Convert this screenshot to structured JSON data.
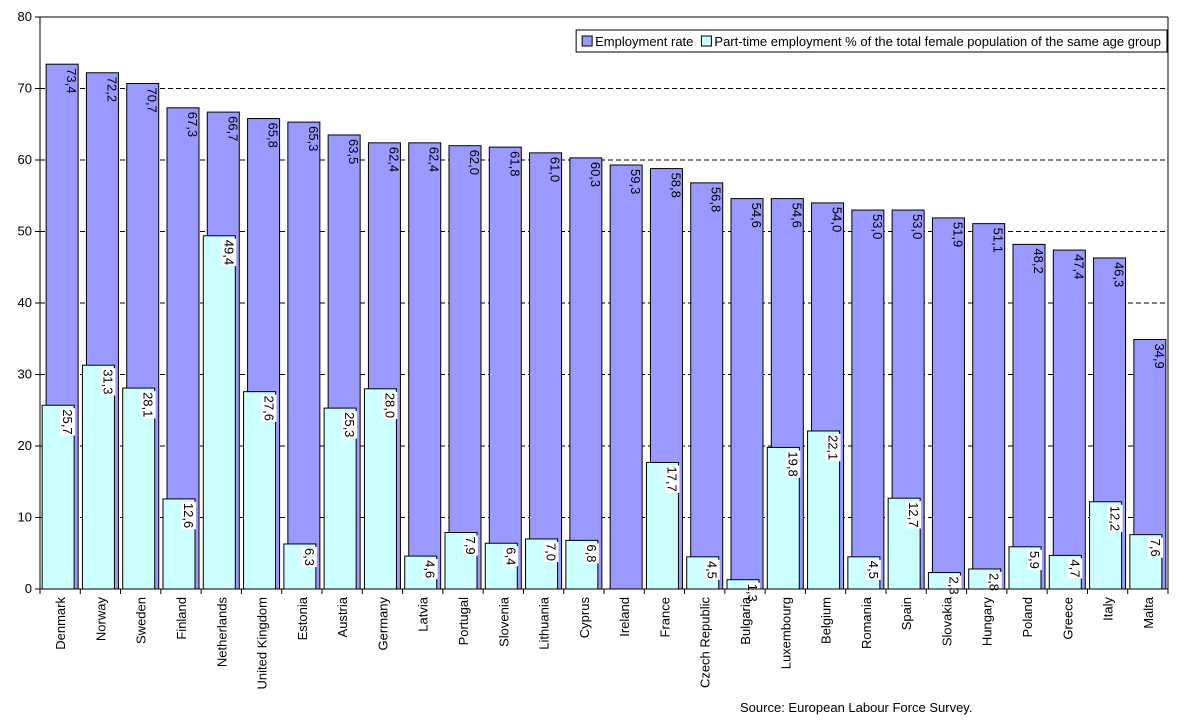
{
  "chart_data": {
    "type": "bar",
    "title": "",
    "xlabel": "",
    "ylabel": "",
    "ylim": [
      0,
      80
    ],
    "yticks": [
      0,
      10,
      20,
      30,
      40,
      50,
      60,
      70,
      80
    ],
    "grid": "horizontal dashed",
    "legend_position": "top-right",
    "categories": [
      "Denmark",
      "Norway",
      "Sweden",
      "Finland",
      "Netherlands",
      "United Kingdom",
      "Estonia",
      "Austria",
      "Germany",
      "Latvia",
      "Portugal",
      "Slovenia",
      "Lithuania",
      "Cyprus",
      "Ireland",
      "France",
      "Czech Republic",
      "Bulgaria",
      "Luxembourg",
      "Belgium",
      "Romania",
      "Spain",
      "Slovakia",
      "Hungary",
      "Poland",
      "Greece",
      "Italy",
      "Malta"
    ],
    "series": [
      {
        "name": "Employment rate",
        "color": "#9999ff",
        "values": [
          73.4,
          72.2,
          70.7,
          67.3,
          66.7,
          65.8,
          65.3,
          63.5,
          62.4,
          62.4,
          62.0,
          61.8,
          61.0,
          60.3,
          59.3,
          58.8,
          56.8,
          54.6,
          54.6,
          54.0,
          53.0,
          53.0,
          51.9,
          51.1,
          48.2,
          47.4,
          46.3,
          34.9
        ],
        "labels": [
          "73,4",
          "72,2",
          "70,7",
          "67,3",
          "66,7",
          "65,8",
          "65,3",
          "63,5",
          "62,4",
          "62,4",
          "62,0",
          "61,8",
          "61,0",
          "60,3",
          "59,3",
          "58,8",
          "56,8",
          "54,6",
          "54,6",
          "54,0",
          "53,0",
          "53,0",
          "51,9",
          "51,1",
          "48,2",
          "47,4",
          "46,3",
          "34,9"
        ]
      },
      {
        "name": "Part-time employment % of the total female population of the same age group",
        "color": "#ccffff",
        "values": [
          25.7,
          31.3,
          28.1,
          12.6,
          49.4,
          27.6,
          6.3,
          25.3,
          28.0,
          4.6,
          7.9,
          6.4,
          7.0,
          6.8,
          null,
          17.7,
          4.5,
          1.3,
          19.8,
          22.1,
          4.5,
          12.7,
          2.3,
          2.8,
          5.9,
          4.7,
          12.2,
          7.6
        ],
        "labels": [
          "25,7",
          "31,3",
          "28,1",
          "12,6",
          "49,4",
          "27,6",
          "6,3",
          "25,3",
          "28,0",
          "4,6",
          "7,9",
          "6,4",
          "7,0",
          "6,8",
          "",
          "17,7",
          "4,5",
          "1,3",
          "19,8",
          "22,1",
          "4,5",
          "12,7",
          "2,3",
          "2,8",
          "5,9",
          "4,7",
          "12,2",
          "7,6"
        ]
      }
    ],
    "source_note": "Source: European Labour Force Survey."
  }
}
